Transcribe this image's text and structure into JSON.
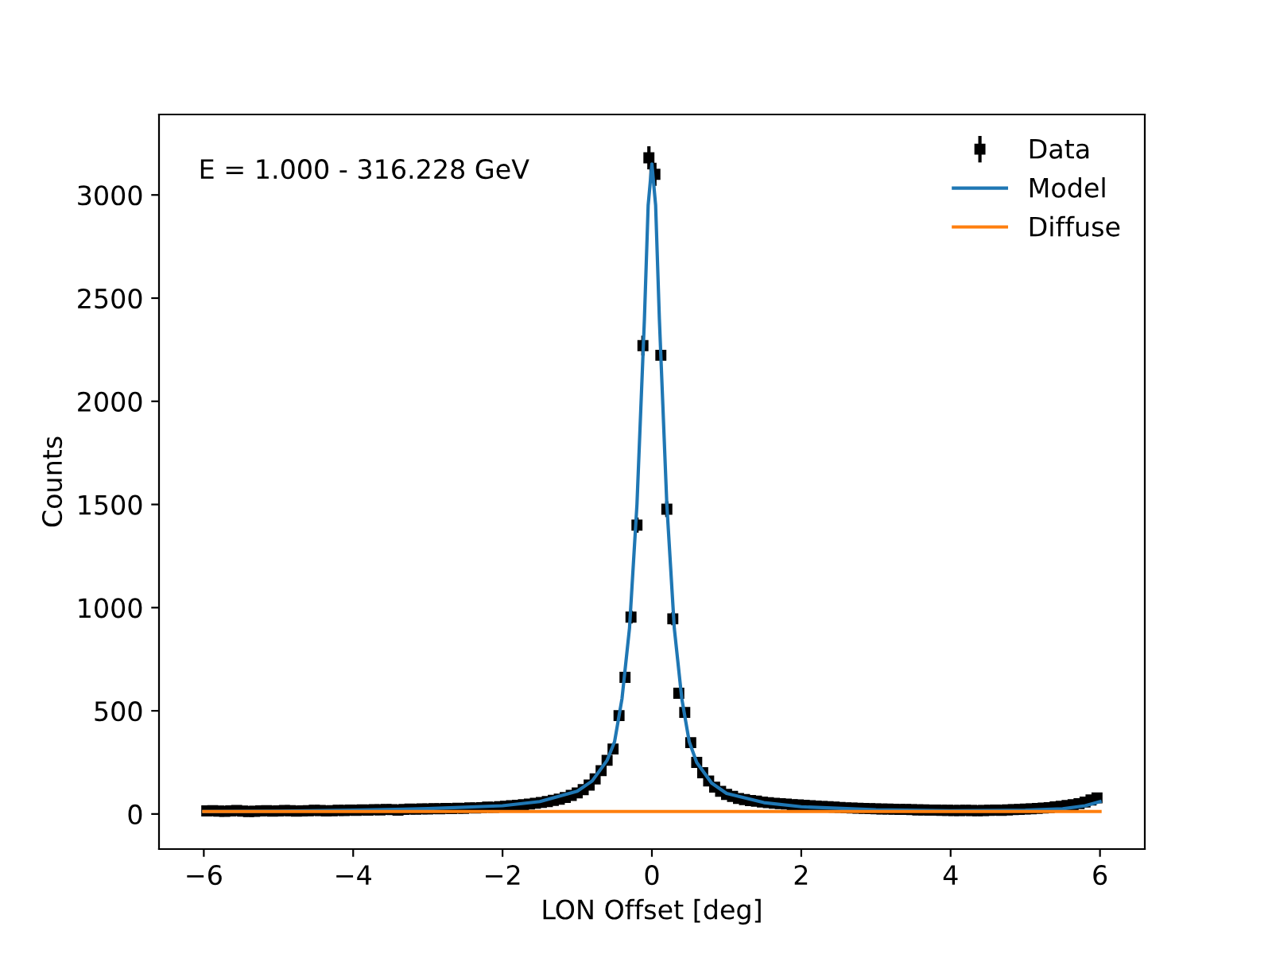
{
  "chart_data": {
    "type": "scatter",
    "xlabel": "LON Offset [deg]",
    "ylabel": "Counts",
    "annotations": [
      "E = 1.000 - 316.228 GeV"
    ],
    "xlim": [
      -6.6,
      6.6
    ],
    "ylim": [
      -170,
      3390
    ],
    "xticks": [
      {
        "value": -6,
        "label": "−6"
      },
      {
        "value": -4,
        "label": "−4"
      },
      {
        "value": -2,
        "label": "−2"
      },
      0,
      2,
      4,
      6
    ],
    "yticks": [
      0,
      500,
      1000,
      1500,
      2000,
      2500,
      3000
    ],
    "grid": false,
    "legend": "top right",
    "series": [
      {
        "name": "Data",
        "marker": "square",
        "color": "#000000",
        "x": [
          -5.96,
          -5.88,
          -5.8,
          -5.72,
          -5.64,
          -5.56,
          -5.48,
          -5.4,
          -5.32,
          -5.24,
          -5.16,
          -5.08,
          -5.0,
          -4.92,
          -4.84,
          -4.76,
          -4.68,
          -4.6,
          -4.52,
          -4.44,
          -4.36,
          -4.28,
          -4.2,
          -4.12,
          -4.04,
          -3.96,
          -3.88,
          -3.8,
          -3.72,
          -3.64,
          -3.56,
          -3.48,
          -3.4,
          -3.32,
          -3.24,
          -3.16,
          -3.08,
          -3.0,
          -2.92,
          -2.84,
          -2.76,
          -2.68,
          -2.6,
          -2.52,
          -2.44,
          -2.36,
          -2.28,
          -2.2,
          -2.12,
          -2.04,
          -1.96,
          -1.88,
          -1.8,
          -1.72,
          -1.64,
          -1.56,
          -1.48,
          -1.4,
          -1.32,
          -1.24,
          -1.16,
          -1.08,
          -1.0,
          -0.92,
          -0.84,
          -0.76,
          -0.68,
          -0.6,
          -0.52,
          -0.44,
          -0.36,
          -0.28,
          -0.2,
          -0.12,
          -0.04,
          0.04,
          0.12,
          0.2,
          0.28,
          0.36,
          0.44,
          0.52,
          0.6,
          0.68,
          0.76,
          0.84,
          0.92,
          1.0,
          1.08,
          1.16,
          1.24,
          1.32,
          1.4,
          1.48,
          1.56,
          1.64,
          1.72,
          1.8,
          1.88,
          1.96,
          2.04,
          2.12,
          2.2,
          2.28,
          2.36,
          2.44,
          2.52,
          2.6,
          2.68,
          2.76,
          2.84,
          2.92,
          3.0,
          3.08,
          3.16,
          3.24,
          3.32,
          3.4,
          3.48,
          3.56,
          3.64,
          3.72,
          3.8,
          3.88,
          3.96,
          4.04,
          4.12,
          4.2,
          4.28,
          4.36,
          4.44,
          4.52,
          4.6,
          4.68,
          4.76,
          4.84,
          4.92,
          5.0,
          5.08,
          5.16,
          5.24,
          5.32,
          5.4,
          5.48,
          5.56,
          5.64,
          5.72,
          5.8,
          5.88,
          5.96
        ],
        "values": [
          15,
          16,
          14,
          13,
          15,
          17,
          14,
          12,
          13,
          15,
          16,
          14,
          15,
          17,
          16,
          14,
          15,
          16,
          18,
          17,
          15,
          16,
          18,
          17,
          19,
          18,
          20,
          19,
          21,
          20,
          22,
          21,
          19,
          22,
          24,
          23,
          25,
          24,
          26,
          25,
          27,
          26,
          28,
          27,
          30,
          29,
          31,
          33,
          32,
          35,
          37,
          40,
          42,
          45,
          48,
          52,
          56,
          60,
          66,
          72,
          80,
          90,
          102,
          118,
          140,
          170,
          210,
          260,
          315,
          477,
          662,
          954,
          1400,
          2270,
          3180,
          3100,
          2223,
          1477,
          946,
          585,
          492,
          346,
          250,
          200,
          160,
          130,
          110,
          95,
          85,
          75,
          70,
          65,
          62,
          58,
          55,
          52,
          50,
          48,
          45,
          44,
          42,
          40,
          38,
          36,
          35,
          33,
          32,
          30,
          29,
          28,
          27,
          26,
          25,
          24,
          24,
          23,
          22,
          22,
          21,
          20,
          20,
          19,
          19,
          18,
          18,
          17,
          17,
          18,
          17,
          16,
          17,
          18,
          19,
          18,
          20,
          21,
          22,
          24,
          25,
          27,
          29,
          31,
          34,
          37,
          41,
          45,
          50,
          58,
          68,
          78
        ],
        "errors": [
          4,
          4,
          4,
          4,
          4,
          4,
          4,
          3,
          4,
          4,
          4,
          4,
          4,
          4,
          4,
          4,
          4,
          4,
          4,
          4,
          4,
          4,
          4,
          4,
          4,
          4,
          4,
          4,
          5,
          4,
          5,
          5,
          4,
          5,
          5,
          5,
          5,
          5,
          5,
          5,
          5,
          5,
          5,
          5,
          5,
          5,
          6,
          6,
          6,
          6,
          6,
          6,
          6,
          7,
          7,
          7,
          7,
          8,
          8,
          8,
          9,
          9,
          10,
          11,
          12,
          13,
          14,
          16,
          18,
          22,
          26,
          31,
          37,
          48,
          56,
          56,
          null,
          38,
          31,
          24,
          22,
          19,
          16,
          14,
          13,
          11,
          10,
          10,
          9,
          9,
          8,
          8,
          8,
          8,
          7,
          7,
          7,
          7,
          7,
          7,
          6,
          6,
          6,
          6,
          6,
          6,
          6,
          5,
          5,
          5,
          5,
          5,
          5,
          5,
          5,
          5,
          5,
          5,
          5,
          5,
          4,
          4,
          4,
          4,
          4,
          4,
          4,
          4,
          4,
          4,
          4,
          4,
          4,
          4,
          4,
          5,
          5,
          5,
          5,
          5,
          5,
          6,
          6,
          6,
          6,
          7,
          7,
          8,
          8,
          9
        ]
      },
      {
        "name": "Model",
        "type": "line",
        "color": "#1f77b4",
        "x": [
          -6,
          -5,
          -4,
          -3,
          -2,
          -1.5,
          -1,
          -0.8,
          -0.6,
          -0.5,
          -0.4,
          -0.3,
          -0.2,
          -0.1,
          -0.05,
          0,
          0.05,
          0.1,
          0.2,
          0.3,
          0.4,
          0.5,
          0.6,
          0.8,
          1,
          1.5,
          2,
          3,
          4,
          5,
          5.5,
          5.8,
          6
        ],
        "values": [
          12,
          14,
          18,
          26,
          40,
          60,
          110,
          160,
          260,
          350,
          560,
          900,
          1500,
          2400,
          2950,
          3150,
          2950,
          2400,
          1500,
          900,
          560,
          350,
          250,
          150,
          100,
          55,
          35,
          20,
          16,
          18,
          25,
          40,
          60
        ]
      },
      {
        "name": "Diffuse",
        "type": "line",
        "color": "#ff7f0e",
        "x": [
          -6,
          6
        ],
        "values": [
          12,
          12
        ]
      }
    ]
  }
}
